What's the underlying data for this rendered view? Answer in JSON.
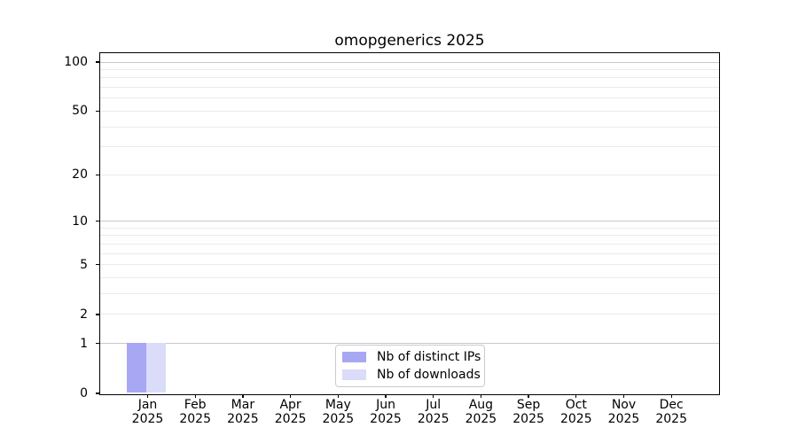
{
  "chart_data": {
    "type": "bar",
    "title": "omopgenerics 2025",
    "x": {
      "categories": [
        "Jan",
        "Feb",
        "Mar",
        "Apr",
        "May",
        "Jun",
        "Jul",
        "Aug",
        "Sep",
        "Oct",
        "Nov",
        "Dec"
      ],
      "year_label": "2025"
    },
    "series": [
      {
        "name": "Nb of distinct IPs",
        "color": "#a7a7f4",
        "values": [
          1,
          0,
          0,
          0,
          0,
          0,
          0,
          0,
          0,
          0,
          0,
          0
        ]
      },
      {
        "name": "Nb of downloads",
        "color": "#dbdbfa",
        "values": [
          1,
          0,
          0,
          0,
          0,
          0,
          0,
          0,
          0,
          0,
          0,
          0
        ]
      }
    ],
    "y_axis": {
      "scale": "log10(1+x)",
      "tick_labels": [
        0,
        1,
        2,
        5,
        10,
        20,
        50,
        100
      ],
      "major_gridlines": [
        1,
        10,
        100
      ],
      "minor_gridlines": [
        2,
        3,
        4,
        5,
        6,
        7,
        8,
        9,
        20,
        30,
        40,
        50,
        60,
        70,
        80,
        90
      ],
      "range": [
        0,
        113
      ]
    },
    "legend": {
      "position": "lower-center",
      "border_color": "#cbcbcb"
    },
    "grid": true,
    "colors": {
      "major_grid": "#c8c8c8",
      "minor_grid": "#ebebeb",
      "axis": "#000000",
      "background": "#ffffff",
      "text": "#000000"
    }
  }
}
